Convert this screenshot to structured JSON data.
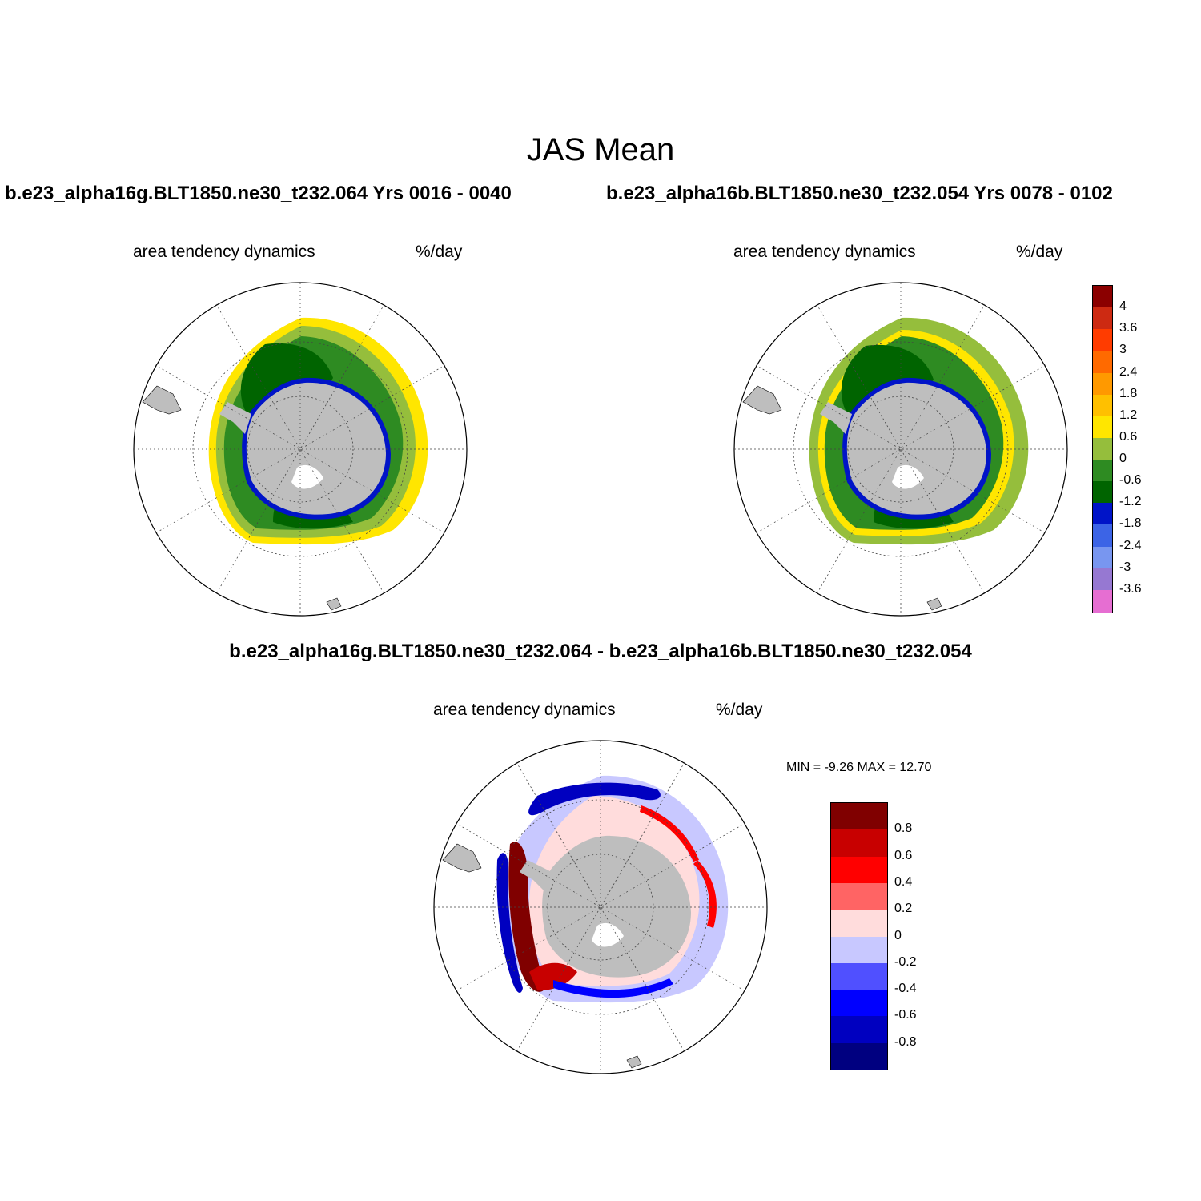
{
  "figure": {
    "title": "JAS Mean",
    "case1_label": "b.e23_alpha16g.BLT1850.ne30_t232.064  Yrs 0016 - 0040",
    "case2_label": "b.e23_alpha16b.BLT1850.ne30_t232.054  Yrs 0078 - 0102",
    "diff_label": "b.e23_alpha16g.BLT1850.ne30_t232.064 - b.e23_alpha16b.BLT1850.ne30_t232.054"
  },
  "panels": [
    {
      "id": "case1",
      "variable": "area tendency dynamics",
      "units": "%/day"
    },
    {
      "id": "case2",
      "variable": "area tendency dynamics",
      "units": "%/day"
    },
    {
      "id": "diff",
      "variable": "area tendency dynamics",
      "units": "%/day",
      "min_max_text": "MIN =  -9.26 MAX =  12.70"
    }
  ],
  "colorbars": {
    "main": {
      "labels": [
        "4",
        "3.6",
        "3",
        "2.4",
        "1.8",
        "1.2",
        "0.6",
        "0",
        "-0.6",
        "-1.2",
        "-1.8",
        "-2.4",
        "-3",
        "-3.6"
      ],
      "colors": [
        "#8b0000",
        "#cd2a12",
        "#ff3c00",
        "#ff6a00",
        "#ff9900",
        "#ffc000",
        "#ffe600",
        "#95be3c",
        "#2e8b22",
        "#006400",
        "#0014c8",
        "#3c64e6",
        "#7896f0",
        "#9678d2",
        "#e66ed2"
      ]
    },
    "diff": {
      "labels": [
        "0.8",
        "0.6",
        "0.4",
        "0.2",
        "0",
        "-0.2",
        "-0.4",
        "-0.6",
        "-0.8"
      ],
      "colors": [
        "#800000",
        "#c80000",
        "#ff0000",
        "#ff6464",
        "#ffdcdc",
        "#c8c8ff",
        "#5050ff",
        "#0000ff",
        "#0000c0",
        "#000080"
      ]
    }
  },
  "legend": {
    "land_color": "#bebebe",
    "projection": "south-polar-stereographic"
  }
}
